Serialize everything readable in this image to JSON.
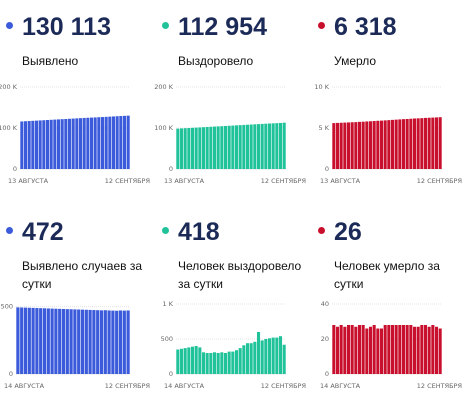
{
  "panels": [
    {
      "value": "130 113",
      "label": "Выявлено",
      "color": "#3b5bdb"
    },
    {
      "value": "112 954",
      "label": "Выздоровело",
      "color": "#20c29a"
    },
    {
      "value": "6 318",
      "label": "Умерло",
      "color": "#c8102e"
    },
    {
      "value": "472",
      "label": "Выявлено случаев за сутки",
      "color": "#3b5bdb"
    },
    {
      "value": "418",
      "label": "Человек выздоровело за сутки",
      "color": "#20c29a"
    },
    {
      "value": "26",
      "label": "Человек умерло за сутки",
      "color": "#c8102e"
    }
  ],
  "chart_data": [
    {
      "type": "bar",
      "color": "#3b5bdb",
      "ylim": [
        0,
        200000
      ],
      "yticks": [
        {
          "v": 0,
          "t": "0"
        },
        {
          "v": 100000,
          "t": "100 K"
        },
        {
          "v": 200000,
          "t": "200 K"
        }
      ],
      "x_start": "13 АВГУСТА",
      "x_end": "12 СЕНТЯБРЯ",
      "values": [
        116000,
        116500,
        117000,
        117500,
        118000,
        118500,
        119000,
        119500,
        120000,
        120500,
        121000,
        121500,
        122000,
        122500,
        123000,
        123500,
        124000,
        124500,
        125000,
        125400,
        125800,
        126300,
        126700,
        127200,
        127700,
        128200,
        128700,
        129200,
        129700,
        130113
      ]
    },
    {
      "type": "bar",
      "color": "#20c29a",
      "ylim": [
        0,
        200000
      ],
      "yticks": [
        {
          "v": 0,
          "t": "0"
        },
        {
          "v": 100000,
          "t": "100 K"
        },
        {
          "v": 200000,
          "t": "200 K"
        }
      ],
      "x_start": "13 АВГУСТА",
      "x_end": "12 СЕНТЯБРЯ",
      "values": [
        98500,
        99000,
        99500,
        100000,
        100500,
        101000,
        101500,
        102000,
        102500,
        103000,
        103500,
        104000,
        104500,
        105000,
        105500,
        106000,
        106500,
        107000,
        107500,
        108000,
        108500,
        109000,
        109500,
        110000,
        110500,
        111000,
        111400,
        111800,
        112300,
        112954
      ]
    },
    {
      "type": "bar",
      "color": "#c8102e",
      "ylim": [
        0,
        10000
      ],
      "yticks": [
        {
          "v": 0,
          "t": "0"
        },
        {
          "v": 5000,
          "t": "5 K"
        },
        {
          "v": 10000,
          "t": "10 K"
        }
      ],
      "x_start": "13 АВГУСТА",
      "x_end": "12 СЕНТЯБРЯ",
      "values": [
        5600,
        5620,
        5640,
        5660,
        5680,
        5700,
        5720,
        5750,
        5770,
        5800,
        5820,
        5850,
        5880,
        5900,
        5930,
        5960,
        5990,
        6020,
        6050,
        6080,
        6100,
        6130,
        6160,
        6180,
        6200,
        6230,
        6250,
        6270,
        6290,
        6318
      ]
    },
    {
      "type": "bar",
      "color": "#3b5bdb",
      "ylim": [
        0,
        520
      ],
      "yticks": [
        {
          "v": 0,
          "t": "0"
        },
        {
          "v": 500,
          "t": "500"
        }
      ],
      "x_start": "14 АВГУСТА",
      "x_end": "12 СЕНТЯБРЯ",
      "values": [
        495,
        494,
        493,
        492,
        491,
        490,
        489,
        488,
        487,
        486,
        485,
        484,
        483,
        482,
        481,
        480,
        479,
        478,
        477,
        476,
        475,
        474,
        473,
        474,
        472,
        471,
        470,
        472,
        471,
        472
      ]
    },
    {
      "type": "bar",
      "color": "#20c29a",
      "ylim": [
        0,
        1000
      ],
      "yticks": [
        {
          "v": 0,
          "t": "0"
        },
        {
          "v": 500,
          "t": "500"
        },
        {
          "v": 1000,
          "t": "1 K"
        }
      ],
      "x_start": "14 АВГУСТА",
      "x_end": "12 СЕНТЯБРЯ",
      "values": [
        350,
        360,
        370,
        380,
        390,
        400,
        380,
        310,
        300,
        300,
        310,
        300,
        310,
        300,
        320,
        320,
        340,
        370,
        410,
        440,
        440,
        460,
        600,
        480,
        500,
        510,
        520,
        520,
        540,
        418
      ]
    },
    {
      "type": "bar",
      "color": "#c8102e",
      "ylim": [
        0,
        40
      ],
      "yticks": [
        {
          "v": 0,
          "t": "0"
        },
        {
          "v": 20,
          "t": "20"
        },
        {
          "v": 40,
          "t": "40"
        }
      ],
      "x_start": "14 АВГУСТА",
      "x_end": "12 СЕНТЯБРЯ",
      "values": [
        28,
        27,
        28,
        27,
        28,
        28,
        27,
        28,
        28,
        26,
        27,
        28,
        26,
        26,
        28,
        28,
        28,
        28,
        28,
        28,
        28,
        28,
        27,
        27,
        28,
        28,
        27,
        28,
        27,
        26
      ]
    }
  ]
}
